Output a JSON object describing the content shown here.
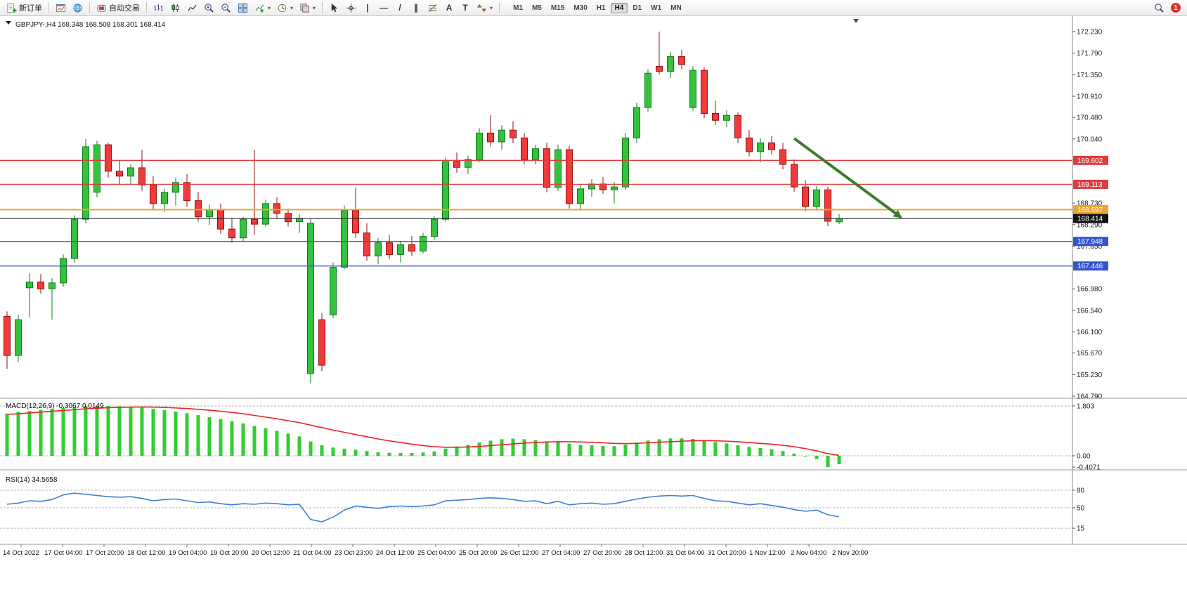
{
  "toolbar": {
    "new_order_label": "新订单",
    "auto_trading_label": "自动交易",
    "timeframes": [
      "M1",
      "M5",
      "M15",
      "M30",
      "H1",
      "H4",
      "D1",
      "W1",
      "MN"
    ],
    "active_timeframe": "H4",
    "notification_badge": "1",
    "glyphs": {
      "dropdown_arrow": "▾",
      "vertical_line_tool": "|",
      "horizontal_line_tool": "—",
      "trendline_tool": "/",
      "channel_tool": "∥",
      "text_tool": "A",
      "label_tool": "T"
    }
  },
  "chart": {
    "symbol_line": "GBPJPY-,H4  168.348 168.508 168.301 168.414",
    "ohlc": {
      "open": "168.348",
      "high": "168.508",
      "low": "168.301",
      "close": "168.414"
    },
    "price_axis_labels": [
      "172.230",
      "171.790",
      "171.350",
      "170.910",
      "170.480",
      "170.040",
      "168.730",
      "168.290",
      "167.850",
      "166.980",
      "166.540",
      "166.100",
      "165.670",
      "165.230",
      "164.790"
    ],
    "time_axis_labels": [
      "14 Oct 2022",
      "17 Oct 04:00",
      "17 Oct 20:00",
      "18 Oct 12:00",
      "19 Oct 04:00",
      "19 Oct 20:00",
      "20 Oct 12:00",
      "21 Oct 04:00",
      "23 Oct 23:00",
      "24 Oct 12:00",
      "25 Oct 04:00",
      "25 Oct 20:00",
      "26 Oct 12:00",
      "27 Oct 04:00",
      "27 Oct 20:00",
      "28 Oct 12:00",
      "31 Oct 04:00",
      "31 Oct 20:00",
      "1 Nov 12:00",
      "2 Nov 04:00",
      "2 Nov 20:00"
    ],
    "hlines": [
      {
        "label": "169.602",
        "price": 169.602,
        "color": "#e03c3c"
      },
      {
        "label": "169.113",
        "price": 169.113,
        "color": "#e03c3c"
      },
      {
        "label": "168.597",
        "price": 168.597,
        "color": "#eda52f"
      },
      {
        "label": "167.948",
        "price": 167.948,
        "color": "#3355cc"
      },
      {
        "label": "167.446",
        "price": 167.446,
        "color": "#3355cc"
      }
    ],
    "current_price": {
      "label": "168.414",
      "price": 168.414,
      "color": "#141414"
    }
  },
  "chart_data": {
    "type": "candlestick",
    "symbol": "GBPJPY-",
    "timeframe": "H4",
    "ylim": [
      164.6,
      172.45
    ],
    "bull_color": "#35c23d",
    "bear_color": "#f23a3a",
    "candles_ohlc": [
      [
        166.42,
        166.52,
        165.35,
        165.62
      ],
      [
        165.62,
        166.45,
        165.48,
        166.35
      ],
      [
        167.0,
        167.3,
        166.4,
        167.12
      ],
      [
        167.12,
        167.28,
        166.88,
        166.98
      ],
      [
        166.98,
        167.2,
        166.35,
        167.1
      ],
      [
        167.1,
        167.68,
        167.02,
        167.6
      ],
      [
        167.6,
        168.48,
        167.52,
        168.4
      ],
      [
        168.4,
        170.04,
        168.32,
        169.88
      ],
      [
        168.95,
        170.0,
        168.85,
        169.92
      ],
      [
        169.92,
        169.96,
        169.25,
        169.38
      ],
      [
        169.38,
        169.6,
        169.12,
        169.28
      ],
      [
        169.28,
        169.52,
        169.12,
        169.45
      ],
      [
        169.45,
        169.82,
        168.98,
        169.1
      ],
      [
        169.1,
        169.28,
        168.58,
        168.72
      ],
      [
        168.72,
        169.02,
        168.55,
        168.95
      ],
      [
        168.95,
        169.25,
        168.68,
        169.15
      ],
      [
        169.15,
        169.32,
        168.65,
        168.78
      ],
      [
        168.78,
        168.96,
        168.35,
        168.45
      ],
      [
        168.45,
        168.7,
        168.28,
        168.6
      ],
      [
        168.6,
        168.72,
        168.1,
        168.2
      ],
      [
        168.2,
        168.42,
        167.92,
        168.02
      ],
      [
        168.02,
        168.45,
        167.95,
        168.4
      ],
      [
        168.4,
        169.82,
        168.08,
        168.3
      ],
      [
        168.3,
        168.8,
        168.25,
        168.72
      ],
      [
        168.72,
        168.85,
        168.42,
        168.52
      ],
      [
        168.52,
        168.62,
        168.25,
        168.35
      ],
      [
        168.35,
        168.5,
        168.12,
        168.42
      ],
      [
        165.25,
        168.42,
        165.05,
        168.32
      ],
      [
        166.35,
        166.48,
        165.3,
        165.42
      ],
      [
        166.45,
        167.52,
        166.38,
        167.42
      ],
      [
        167.42,
        168.68,
        167.38,
        168.58
      ],
      [
        168.58,
        169.05,
        168.02,
        168.12
      ],
      [
        168.12,
        168.32,
        167.55,
        167.65
      ],
      [
        167.65,
        168.02,
        167.48,
        167.92
      ],
      [
        167.92,
        168.08,
        167.58,
        167.68
      ],
      [
        167.68,
        167.95,
        167.52,
        167.88
      ],
      [
        167.88,
        168.06,
        167.65,
        167.75
      ],
      [
        167.75,
        168.12,
        167.7,
        168.05
      ],
      [
        168.05,
        168.46,
        167.98,
        168.4
      ],
      [
        168.4,
        169.66,
        168.35,
        169.58
      ],
      [
        169.58,
        169.76,
        169.35,
        169.46
      ],
      [
        169.46,
        169.7,
        169.32,
        169.62
      ],
      [
        169.62,
        170.26,
        169.56,
        170.16
      ],
      [
        170.16,
        170.52,
        169.88,
        169.98
      ],
      [
        169.98,
        170.32,
        169.82,
        170.22
      ],
      [
        170.22,
        170.4,
        169.95,
        170.06
      ],
      [
        170.06,
        170.16,
        169.52,
        169.62
      ],
      [
        169.62,
        169.92,
        169.52,
        169.84
      ],
      [
        169.84,
        169.96,
        168.95,
        169.05
      ],
      [
        169.05,
        169.92,
        168.98,
        169.82
      ],
      [
        169.82,
        169.9,
        168.62,
        168.72
      ],
      [
        168.72,
        169.12,
        168.58,
        169.02
      ],
      [
        169.02,
        169.22,
        168.86,
        169.12
      ],
      [
        169.12,
        169.26,
        168.92,
        169.0
      ],
      [
        169.0,
        169.16,
        168.72,
        169.06
      ],
      [
        169.06,
        170.16,
        169.0,
        170.06
      ],
      [
        170.06,
        170.78,
        169.96,
        170.68
      ],
      [
        170.68,
        171.46,
        170.6,
        171.38
      ],
      [
        171.52,
        172.23,
        171.36,
        171.42
      ],
      [
        171.42,
        171.82,
        171.28,
        171.72
      ],
      [
        171.72,
        171.86,
        171.46,
        171.56
      ],
      [
        170.68,
        171.52,
        170.62,
        171.44
      ],
      [
        171.44,
        171.5,
        170.46,
        170.56
      ],
      [
        170.56,
        170.82,
        170.32,
        170.42
      ],
      [
        170.42,
        170.62,
        170.28,
        170.52
      ],
      [
        170.52,
        170.58,
        169.96,
        170.06
      ],
      [
        170.06,
        170.22,
        169.68,
        169.78
      ],
      [
        169.78,
        170.06,
        169.56,
        169.96
      ],
      [
        169.96,
        170.1,
        169.72,
        169.82
      ],
      [
        169.82,
        169.96,
        169.42,
        169.52
      ],
      [
        169.52,
        169.62,
        168.96,
        169.06
      ],
      [
        169.06,
        169.2,
        168.56,
        168.66
      ],
      [
        168.66,
        169.08,
        168.6,
        169.0
      ],
      [
        169.0,
        169.06,
        168.26,
        168.36
      ],
      [
        168.348,
        168.508,
        168.301,
        168.414
      ]
    ],
    "macd": {
      "display": "MACD(12,26,9) -0.3067 0.0149",
      "params": "12,26,9",
      "macd_value": -0.3067,
      "signal_value": 0.0149,
      "scale_labels": [
        "1.803",
        "0.00",
        "-0.4071"
      ],
      "scale_values": [
        1.803,
        0,
        -0.4071
      ],
      "histogram_color": "#32CD32",
      "signal_color": "#ee2222",
      "histogram": [
        1.52,
        1.58,
        1.62,
        1.66,
        1.7,
        1.73,
        1.76,
        1.79,
        1.803,
        1.8,
        1.79,
        1.77,
        1.74,
        1.7,
        1.65,
        1.6,
        1.54,
        1.47,
        1.4,
        1.33,
        1.25,
        1.17,
        1.08,
        1.0,
        0.9,
        0.8,
        0.7,
        0.52,
        0.38,
        0.3,
        0.26,
        0.22,
        0.17,
        0.13,
        0.11,
        0.1,
        0.1,
        0.12,
        0.16,
        0.26,
        0.34,
        0.4,
        0.48,
        0.55,
        0.6,
        0.62,
        0.6,
        0.57,
        0.52,
        0.5,
        0.44,
        0.4,
        0.38,
        0.36,
        0.35,
        0.4,
        0.48,
        0.55,
        0.6,
        0.63,
        0.63,
        0.61,
        0.56,
        0.5,
        0.45,
        0.38,
        0.32,
        0.28,
        0.24,
        0.17,
        0.08,
        -0.02,
        -0.12,
        -0.4071,
        -0.3067
      ],
      "signal": [
        1.5,
        1.52,
        1.55,
        1.58,
        1.61,
        1.64,
        1.67,
        1.7,
        1.72,
        1.74,
        1.75,
        1.76,
        1.765,
        1.76,
        1.75,
        1.73,
        1.71,
        1.68,
        1.65,
        1.61,
        1.57,
        1.52,
        1.46,
        1.4,
        1.34,
        1.27,
        1.2,
        1.11,
        1.02,
        0.93,
        0.85,
        0.77,
        0.69,
        0.61,
        0.54,
        0.48,
        0.42,
        0.37,
        0.33,
        0.31,
        0.31,
        0.32,
        0.34,
        0.37,
        0.4,
        0.43,
        0.46,
        0.48,
        0.5,
        0.51,
        0.51,
        0.5,
        0.49,
        0.47,
        0.45,
        0.44,
        0.45,
        0.47,
        0.49,
        0.51,
        0.53,
        0.54,
        0.55,
        0.54,
        0.53,
        0.51,
        0.48,
        0.45,
        0.42,
        0.38,
        0.33,
        0.26,
        0.18,
        0.08,
        0.0149
      ]
    },
    "rsi": {
      "display": "RSI(14) 34.5658",
      "period": 14,
      "value": 34.5658,
      "levels": [
        80,
        50,
        15
      ],
      "line_color": "#3e7fd6",
      "points": [
        56,
        58,
        62,
        61,
        64,
        72,
        75,
        73,
        71,
        69,
        68,
        69,
        66,
        62,
        64,
        65,
        62,
        59,
        60,
        57,
        55,
        57,
        56,
        58,
        57,
        55,
        56,
        30,
        26,
        34,
        46,
        53,
        51,
        49,
        52,
        53,
        52,
        53,
        55,
        62,
        63,
        64,
        66,
        67,
        66,
        64,
        61,
        62,
        57,
        61,
        55,
        57,
        58,
        56,
        57,
        61,
        65,
        68,
        70,
        71,
        70,
        71,
        66,
        62,
        61,
        58,
        55,
        57,
        54,
        51,
        47,
        44,
        46,
        38,
        34.57
      ]
    },
    "trend_arrow": {
      "from_bar": 70,
      "from_price": 170.05,
      "to_bar": 79.5,
      "to_price": 168.44,
      "color": "#3a7d2c"
    }
  }
}
